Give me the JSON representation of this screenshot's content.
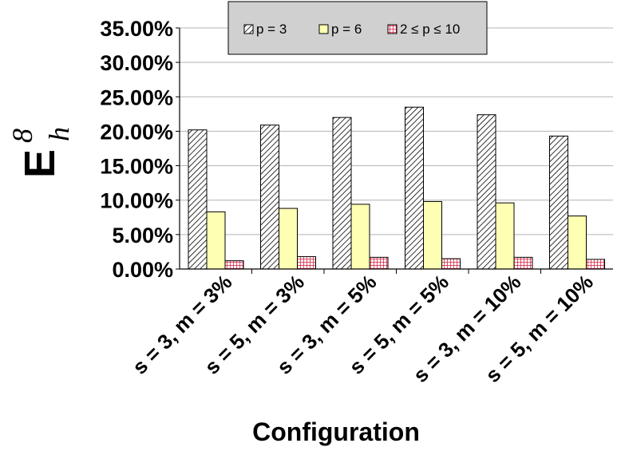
{
  "chart_data": {
    "type": "bar",
    "title": "",
    "xlabel": "Configuration",
    "ylabel": {
      "base": "E",
      "sup": "8",
      "sub": "h"
    },
    "ylim": [
      0,
      35
    ],
    "yticks": [
      0,
      5,
      10,
      15,
      20,
      25,
      30,
      35
    ],
    "ytick_labels": [
      "0.00%",
      "5.00%",
      "10.00%",
      "15.00%",
      "20.00%",
      "25.00%",
      "30.00%",
      "35.00%"
    ],
    "grid": true,
    "legend_position": "top",
    "categories": [
      "s = 3, m = 3%",
      "s = 5, m = 3%",
      "s = 3, m = 5%",
      "s = 5, m = 5%",
      "s = 3, m = 10%",
      "s = 5, m = 10%"
    ],
    "series": [
      {
        "name": "p = 3",
        "pattern": "diagonal-hatch",
        "color": "#000000",
        "values": [
          20.2,
          20.9,
          22.0,
          23.5,
          22.4,
          19.3
        ]
      },
      {
        "name": "p = 6",
        "pattern": "solid",
        "color": "#ffffb3",
        "values": [
          8.3,
          8.8,
          9.4,
          9.8,
          9.6,
          7.7
        ]
      },
      {
        "name": "2 ≤ p ≤ 10",
        "pattern": "grid",
        "color": "#d81b3c",
        "values": [
          1.2,
          1.8,
          1.7,
          1.5,
          1.7,
          1.4
        ]
      }
    ]
  }
}
